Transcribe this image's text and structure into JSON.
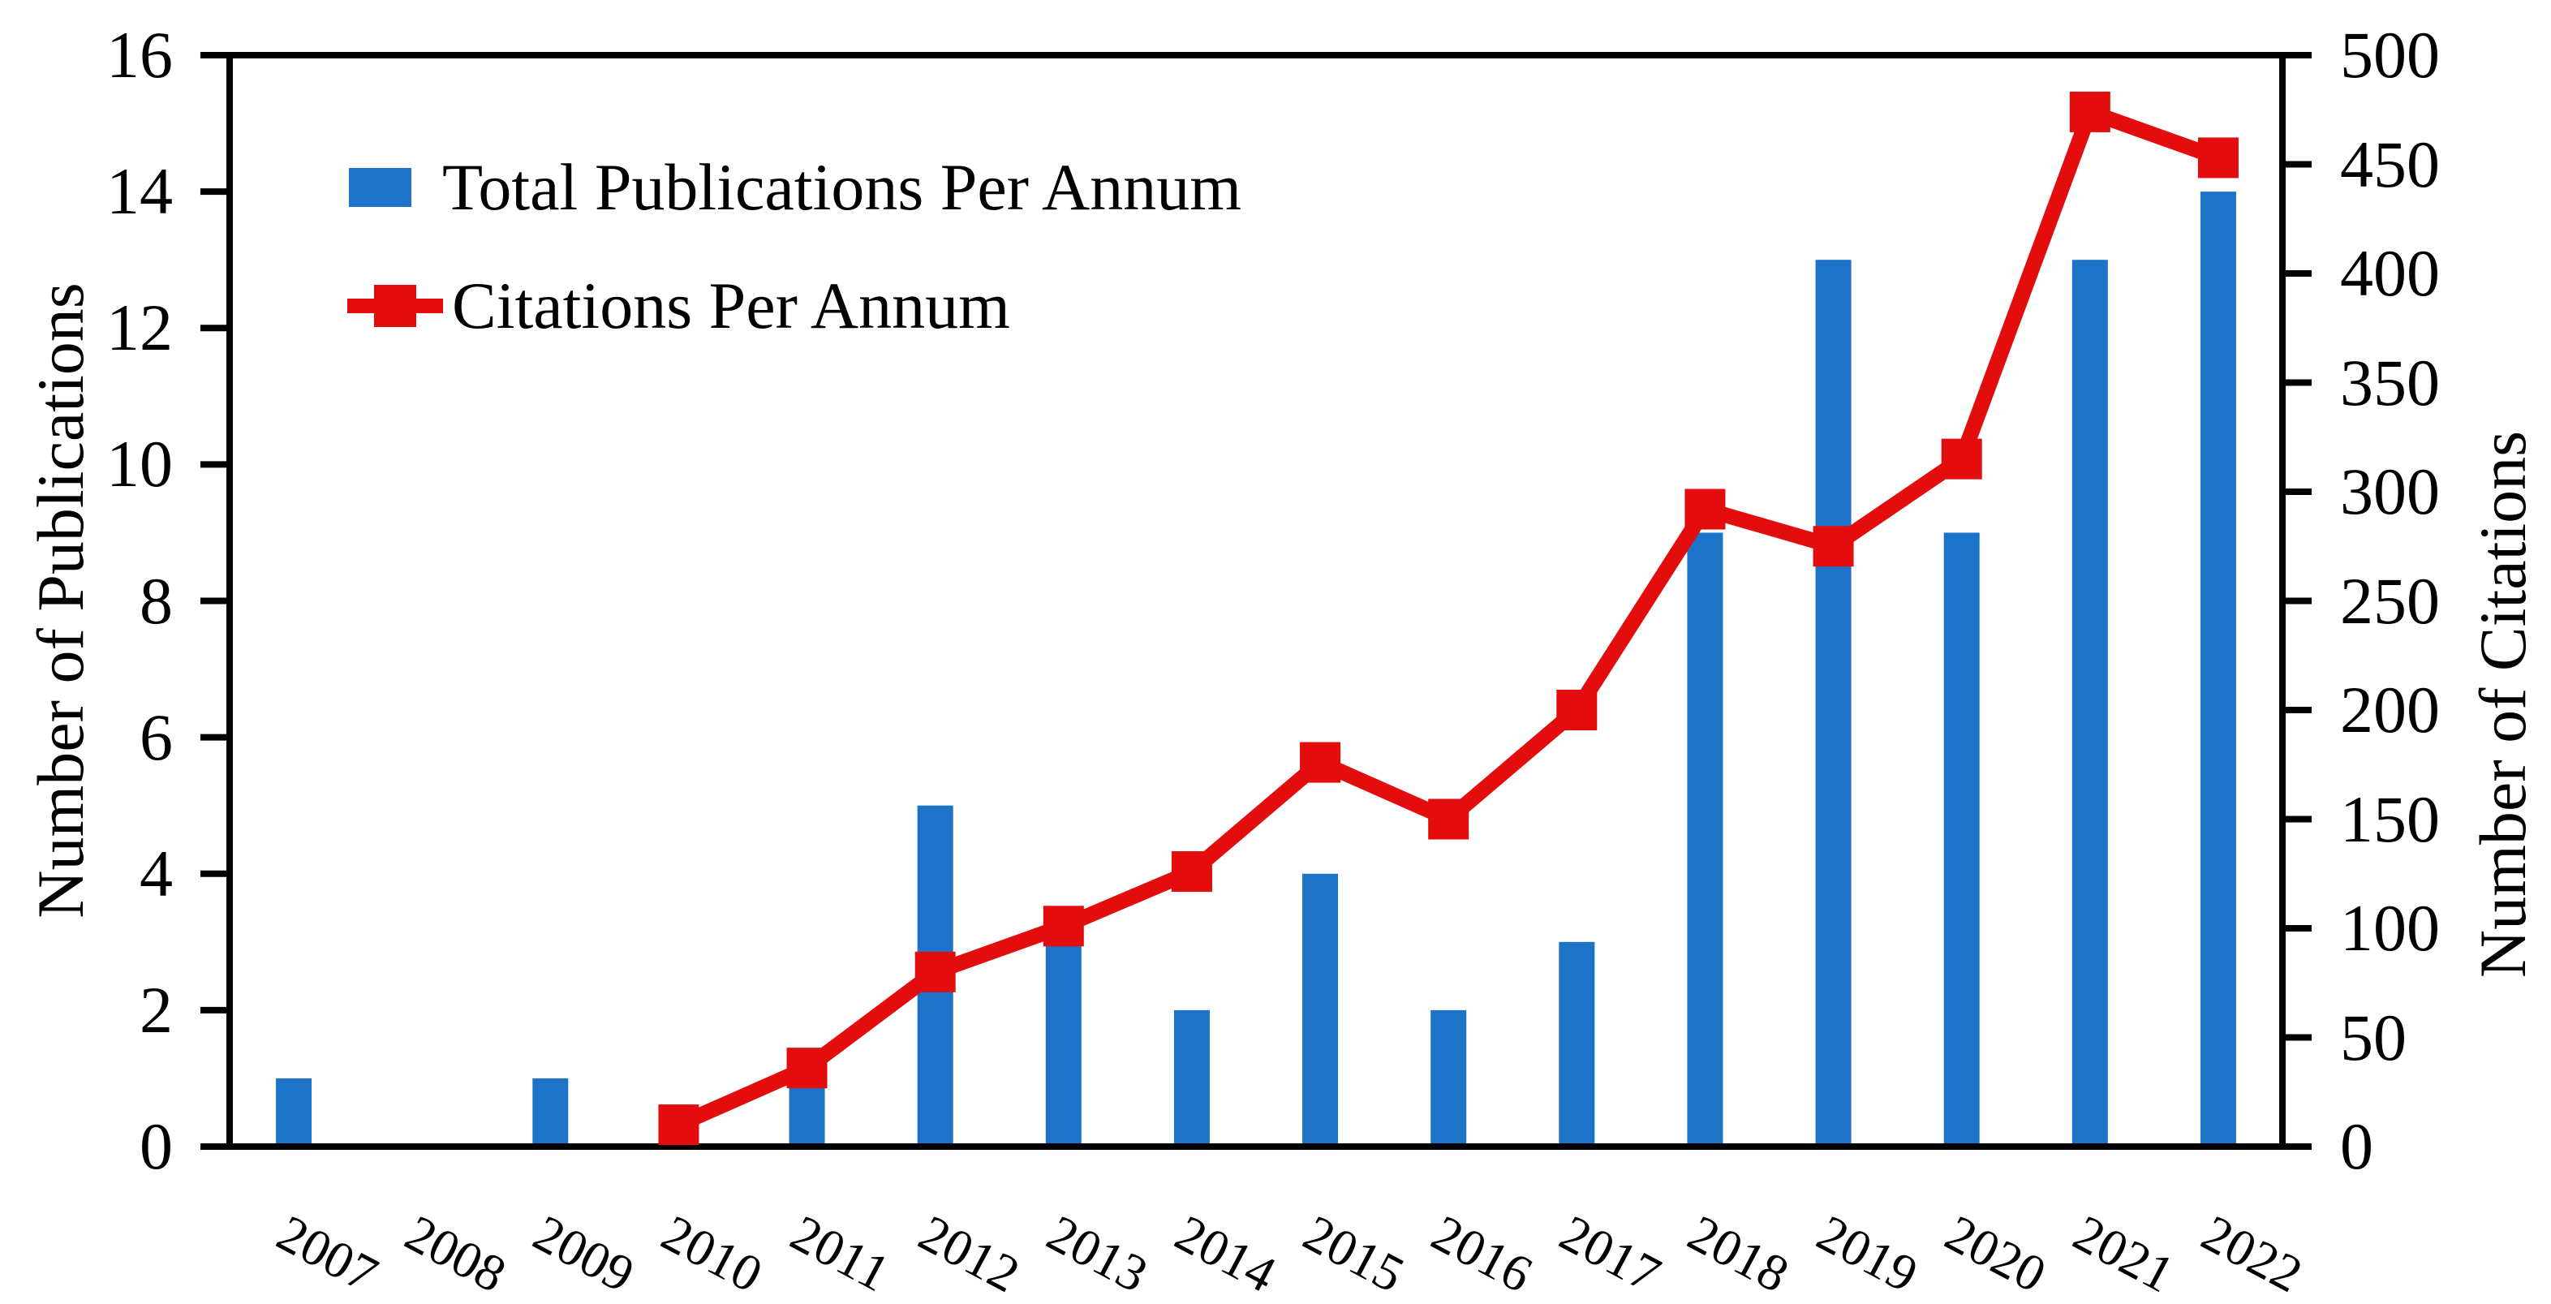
{
  "chart_data": {
    "type": "bar",
    "subtype": "dual-axis bar + line with square markers",
    "categories": [
      "2007",
      "2008",
      "2009",
      "2010",
      "2011",
      "2012",
      "2013",
      "2014",
      "2015",
      "2016",
      "2017",
      "2018",
      "2019",
      "2020",
      "2021",
      "2022"
    ],
    "series": [
      {
        "name": "Total Publications Per Annum",
        "type": "bar",
        "axis": "left",
        "color": "#1D73C8",
        "values": [
          1,
          0,
          1,
          0,
          1,
          5,
          3,
          2,
          4,
          2,
          3,
          9,
          13,
          9,
          13,
          14
        ]
      },
      {
        "name": "Citations Per Annum",
        "type": "line",
        "axis": "right",
        "marker": "square",
        "color": "#E30D0D",
        "values": [
          null,
          null,
          null,
          10,
          36,
          80,
          101,
          126,
          176,
          150,
          200,
          292,
          275,
          315,
          474,
          453
        ]
      }
    ],
    "left_axis": {
      "label": "Number of Publications",
      "min": 0,
      "max": 16,
      "tick_step": 2,
      "ticks": [
        0,
        2,
        4,
        6,
        8,
        10,
        12,
        14,
        16
      ]
    },
    "right_axis": {
      "label": "Number of Citations",
      "min": 0,
      "max": 500,
      "tick_step": 50,
      "ticks": [
        0,
        50,
        100,
        150,
        200,
        250,
        300,
        350,
        400,
        450,
        500
      ]
    },
    "legend": {
      "position": "top-left-inside"
    },
    "grid": false,
    "background": "#FFFFFF",
    "frame_color": "#000000"
  }
}
